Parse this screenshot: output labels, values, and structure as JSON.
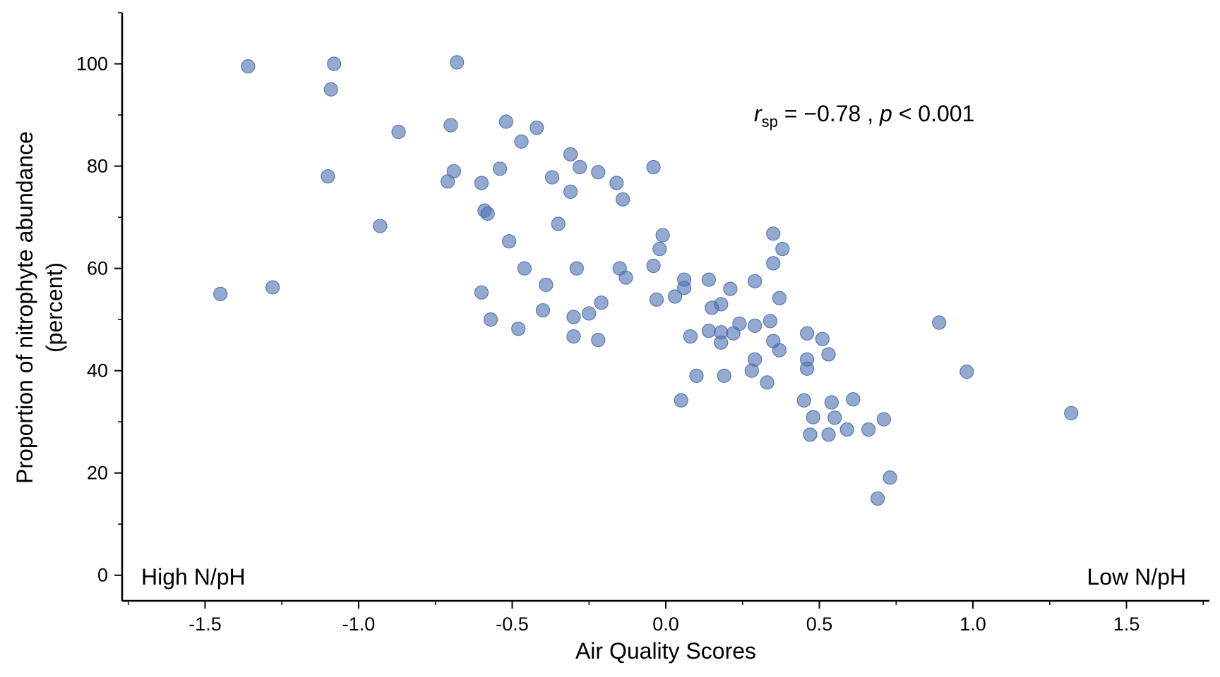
{
  "chart_data": {
    "type": "scatter",
    "xlabel": "Air Quality Scores",
    "ylabel_line1": "Proportion of nitrophyte abundance",
    "ylabel_line2": "(percent)",
    "xlim": [
      -1.77,
      1.77
    ],
    "ylim": [
      -5,
      110
    ],
    "xticks": [
      -1.5,
      -1.0,
      -0.5,
      0.0,
      0.5,
      1.0,
      1.5
    ],
    "xtick_labels": [
      "-1.5",
      "-1.0",
      "-0.5",
      "0.0",
      "0.5",
      "1.0",
      "1.5"
    ],
    "yticks": [
      0,
      20,
      40,
      60,
      80,
      100
    ],
    "ytick_labels": [
      "0",
      "20",
      "40",
      "60",
      "80",
      "100"
    ],
    "grid": false,
    "marker_color": "#4c6fb1",
    "annotation": {
      "r_symbol": "r",
      "r_sub": "sp",
      "r_value": " = −0.78 , ",
      "p_symbol": "p",
      "p_value": " < 0.001"
    },
    "corner_labels": {
      "left": "High N/pH",
      "right": "Low N/pH"
    },
    "points": [
      {
        "x": -1.45,
        "y": 55
      },
      {
        "x": -1.36,
        "y": 99.5
      },
      {
        "x": -1.28,
        "y": 56.3
      },
      {
        "x": -1.08,
        "y": 100
      },
      {
        "x": -1.09,
        "y": 95
      },
      {
        "x": -1.1,
        "y": 78
      },
      {
        "x": -0.93,
        "y": 68.3
      },
      {
        "x": -0.87,
        "y": 86.7
      },
      {
        "x": -0.68,
        "y": 100.3
      },
      {
        "x": -0.7,
        "y": 88
      },
      {
        "x": -0.69,
        "y": 79
      },
      {
        "x": -0.71,
        "y": 77
      },
      {
        "x": -0.6,
        "y": 76.7
      },
      {
        "x": -0.59,
        "y": 71.3
      },
      {
        "x": -0.58,
        "y": 70.7
      },
      {
        "x": -0.6,
        "y": 55.3
      },
      {
        "x": -0.57,
        "y": 50
      },
      {
        "x": -0.54,
        "y": 79.5
      },
      {
        "x": -0.51,
        "y": 65.3
      },
      {
        "x": -0.52,
        "y": 88.7
      },
      {
        "x": -0.47,
        "y": 84.8
      },
      {
        "x": -0.42,
        "y": 87.5
      },
      {
        "x": -0.46,
        "y": 60
      },
      {
        "x": -0.48,
        "y": 48.2
      },
      {
        "x": -0.4,
        "y": 51.8
      },
      {
        "x": -0.39,
        "y": 56.8
      },
      {
        "x": -0.37,
        "y": 77.8
      },
      {
        "x": -0.35,
        "y": 68.7
      },
      {
        "x": -0.31,
        "y": 82.3
      },
      {
        "x": -0.31,
        "y": 75
      },
      {
        "x": -0.28,
        "y": 79.8
      },
      {
        "x": -0.29,
        "y": 60
      },
      {
        "x": -0.3,
        "y": 50.5
      },
      {
        "x": -0.3,
        "y": 46.7
      },
      {
        "x": -0.25,
        "y": 51.2
      },
      {
        "x": -0.22,
        "y": 78.8
      },
      {
        "x": -0.21,
        "y": 53.3
      },
      {
        "x": -0.22,
        "y": 46
      },
      {
        "x": -0.16,
        "y": 76.7
      },
      {
        "x": -0.15,
        "y": 60
      },
      {
        "x": -0.14,
        "y": 73.5
      },
      {
        "x": -0.13,
        "y": 58.2
      },
      {
        "x": -0.04,
        "y": 79.8
      },
      {
        "x": -0.04,
        "y": 60.5
      },
      {
        "x": -0.03,
        "y": 53.9
      },
      {
        "x": -0.02,
        "y": 63.8
      },
      {
        "x": -0.01,
        "y": 66.5
      },
      {
        "x": 0.03,
        "y": 54.5
      },
      {
        "x": 0.06,
        "y": 57.8
      },
      {
        "x": 0.06,
        "y": 56.2
      },
      {
        "x": 0.05,
        "y": 34.2
      },
      {
        "x": 0.08,
        "y": 46.7
      },
      {
        "x": 0.1,
        "y": 39
      },
      {
        "x": 0.14,
        "y": 57.8
      },
      {
        "x": 0.15,
        "y": 52.3
      },
      {
        "x": 0.14,
        "y": 47.8
      },
      {
        "x": 0.18,
        "y": 53
      },
      {
        "x": 0.18,
        "y": 47.5
      },
      {
        "x": 0.18,
        "y": 45.5
      },
      {
        "x": 0.19,
        "y": 39
      },
      {
        "x": 0.21,
        "y": 56
      },
      {
        "x": 0.22,
        "y": 47.3
      },
      {
        "x": 0.24,
        "y": 49.2
      },
      {
        "x": 0.29,
        "y": 57.5
      },
      {
        "x": 0.29,
        "y": 48.8
      },
      {
        "x": 0.29,
        "y": 42.2
      },
      {
        "x": 0.28,
        "y": 40
      },
      {
        "x": 0.33,
        "y": 37.7
      },
      {
        "x": 0.34,
        "y": 49.7
      },
      {
        "x": 0.35,
        "y": 66.8
      },
      {
        "x": 0.35,
        "y": 61
      },
      {
        "x": 0.38,
        "y": 63.8
      },
      {
        "x": 0.37,
        "y": 54.2
      },
      {
        "x": 0.35,
        "y": 45.8
      },
      {
        "x": 0.37,
        "y": 44
      },
      {
        "x": 0.46,
        "y": 47.3
      },
      {
        "x": 0.46,
        "y": 42.2
      },
      {
        "x": 0.46,
        "y": 40.4
      },
      {
        "x": 0.45,
        "y": 34.2
      },
      {
        "x": 0.48,
        "y": 30.9
      },
      {
        "x": 0.47,
        "y": 27.5
      },
      {
        "x": 0.51,
        "y": 46.2
      },
      {
        "x": 0.53,
        "y": 43.2
      },
      {
        "x": 0.54,
        "y": 33.8
      },
      {
        "x": 0.55,
        "y": 30.8
      },
      {
        "x": 0.53,
        "y": 27.5
      },
      {
        "x": 0.59,
        "y": 28.5
      },
      {
        "x": 0.61,
        "y": 34.4
      },
      {
        "x": 0.66,
        "y": 28.5
      },
      {
        "x": 0.69,
        "y": 15
      },
      {
        "x": 0.71,
        "y": 30.5
      },
      {
        "x": 0.73,
        "y": 19.1
      },
      {
        "x": 0.89,
        "y": 49.4
      },
      {
        "x": 0.98,
        "y": 39.8
      },
      {
        "x": 1.32,
        "y": 31.7
      }
    ]
  }
}
